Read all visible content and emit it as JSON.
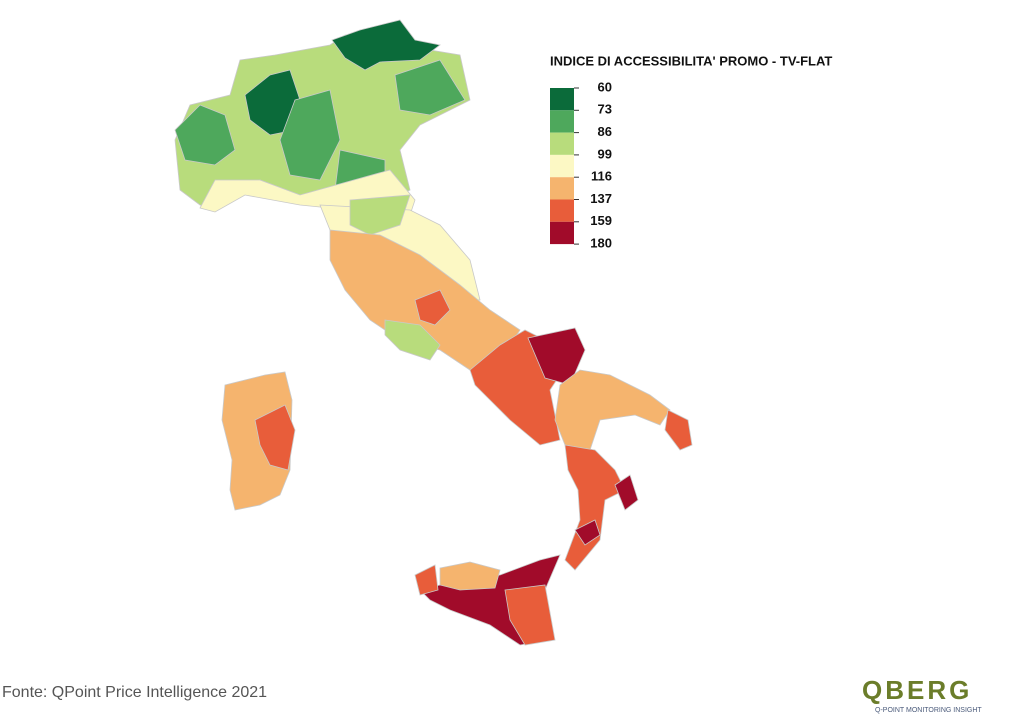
{
  "legend": {
    "title": "INDICE DI ACCESSIBILITA' PROMO - TV-FLAT",
    "breaks": [
      60,
      73,
      86,
      99,
      116,
      137,
      159,
      180
    ],
    "colors": [
      "#0b6b3a",
      "#4ea85c",
      "#b8dc7c",
      "#fcf8c4",
      "#f5b46e",
      "#e85d3a",
      "#a10b2a"
    ]
  },
  "source": "Fonte: QPoint Price Intelligence 2021",
  "logo": {
    "name": "QBERG",
    "tagline": "Q-POINT MONITORING INSIGHT"
  }
}
